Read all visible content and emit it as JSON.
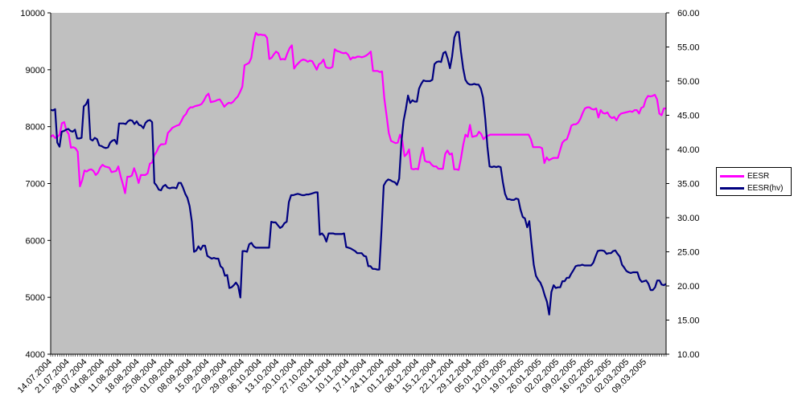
{
  "chart_data": {
    "type": "line",
    "title": "",
    "xlabel": "",
    "ylabel_left": "",
    "ylabel_right": "",
    "left_axis": {
      "ylim": [
        4000,
        10000
      ],
      "ticks": [
        "4000",
        "5000",
        "6000",
        "7000",
        "8000",
        "9000",
        "10000"
      ]
    },
    "right_axis": {
      "ylim": [
        10,
        60
      ],
      "ticks": [
        "10.00",
        "15.00",
        "20.00",
        "25.00",
        "30.00",
        "35.00",
        "40.00",
        "45.00",
        "50.00",
        "55.00",
        "60.00"
      ]
    },
    "x_tick_labels": [
      "14.07.2004",
      "21.07.2004",
      "28.07.2004",
      "04.08.2004",
      "11.08.2004",
      "18.08.2004",
      "25.08.2004",
      "01.09.2004",
      "08.09.2004",
      "15.09.2004",
      "22.09.2004",
      "29.09.2004",
      "06.10.2004",
      "13.10.2004",
      "20.10.2004",
      "27.10.2004",
      "03.11.2004",
      "10.11.2004",
      "17.11.2004",
      "24.11.2004",
      "01.12.2004",
      "08.12.2004",
      "15.12.2004",
      "22.12.2004",
      "29.12.2004",
      "05.01.2005",
      "12.01.2005",
      "19.01.2005",
      "26.01.2005",
      "02.02.2005",
      "09.02.2005",
      "16.02.2005",
      "23.02.2005",
      "02.03.2005",
      "09.03.2005"
    ],
    "grid": false,
    "plot_background": "#c0c0c0",
    "legend_position": "right",
    "series": [
      {
        "name": "EESR",
        "axis": "left",
        "color": "#ff00ff",
        "values": [
          7820,
          7850,
          7800,
          7820,
          7860,
          8060,
          8080,
          7930,
          7870,
          7630,
          7640,
          7620,
          7560,
          6950,
          7060,
          7230,
          7210,
          7240,
          7250,
          7220,
          7150,
          7190,
          7280,
          7330,
          7300,
          7290,
          7280,
          7200,
          7210,
          7220,
          7300,
          7130,
          6990,
          6830,
          7120,
          7120,
          7140,
          7270,
          7160,
          7010,
          7150,
          7150,
          7150,
          7180,
          7350,
          7370,
          7500,
          7560,
          7650,
          7690,
          7690,
          7700,
          7890,
          7930,
          7980,
          8000,
          8020,
          8030,
          8100,
          8180,
          8220,
          8300,
          8340,
          8340,
          8360,
          8370,
          8380,
          8400,
          8460,
          8540,
          8580,
          8430,
          8440,
          8450,
          8470,
          8480,
          8420,
          8350,
          8390,
          8420,
          8410,
          8440,
          8490,
          8530,
          8610,
          8700,
          9080,
          9100,
          9120,
          9210,
          9480,
          9650,
          9610,
          9620,
          9610,
          9610,
          9560,
          9190,
          9210,
          9270,
          9320,
          9290,
          9180,
          9190,
          9180,
          9290,
          9380,
          9430,
          9020,
          9080,
          9120,
          9160,
          9180,
          9170,
          9140,
          9160,
          9150,
          9080,
          9000,
          9100,
          9120,
          9180,
          9050,
          9030,
          9030,
          9050,
          9360,
          9330,
          9320,
          9300,
          9290,
          9300,
          9260,
          9180,
          9220,
          9210,
          9230,
          9230,
          9220,
          9230,
          9250,
          9280,
          9320,
          8980,
          8980,
          8980,
          8960,
          8970,
          8500,
          8200,
          7890,
          7750,
          7730,
          7710,
          7720,
          7860,
          7750,
          7480,
          7520,
          7600,
          7260,
          7250,
          7260,
          7250,
          7460,
          7630,
          7400,
          7380,
          7380,
          7330,
          7300,
          7300,
          7260,
          7260,
          7260,
          7520,
          7580,
          7510,
          7530,
          7250,
          7250,
          7240,
          7440,
          7680,
          7860,
          7820,
          8030,
          7820,
          7830,
          7840,
          7910,
          7870,
          7780,
          7820,
          7840,
          7860,
          7860,
          7860,
          7860,
          7860,
          7860,
          7860,
          7860,
          7860,
          7860,
          7860,
          7860,
          7860,
          7860,
          7860,
          7860,
          7860,
          7860,
          7780,
          7640,
          7640,
          7640,
          7640,
          7620,
          7360,
          7460,
          7410,
          7430,
          7450,
          7450,
          7450,
          7590,
          7720,
          7760,
          7780,
          7890,
          8020,
          8040,
          8040,
          8070,
          8140,
          8240,
          8320,
          8340,
          8340,
          8310,
          8300,
          8320,
          8160,
          8290,
          8240,
          8230,
          8250,
          8180,
          8150,
          8170,
          8110,
          8190,
          8230,
          8240,
          8250,
          8260,
          8270,
          8260,
          8290,
          8290,
          8230,
          8330,
          8350,
          8480,
          8540,
          8530,
          8540,
          8560,
          8480,
          8230,
          8200,
          8320,
          8320
        ]
      },
      {
        "name": "EESR(hv)",
        "axis": "right",
        "color": "#000080",
        "values": [
          45.8,
          45.7,
          45.9,
          41.0,
          40.4,
          42.6,
          42.7,
          42.9,
          43.0,
          42.7,
          42.6,
          42.9,
          41.6,
          41.6,
          41.7,
          46.3,
          46.6,
          47.3,
          41.5,
          41.3,
          41.7,
          41.5,
          40.6,
          40.5,
          40.3,
          40.2,
          40.3,
          41.0,
          41.3,
          41.4,
          40.8,
          43.8,
          43.8,
          43.8,
          43.7,
          44.1,
          44.3,
          44.2,
          43.7,
          44.1,
          43.6,
          43.5,
          43.1,
          43.9,
          44.2,
          44.3,
          44.0,
          35.1,
          34.7,
          34.1,
          34.0,
          34.6,
          34.8,
          34.4,
          34.3,
          34.4,
          34.4,
          34.3,
          35.1,
          35.1,
          34.4,
          33.5,
          32.9,
          31.7,
          29.4,
          25.0,
          25.2,
          25.8,
          25.3,
          25.9,
          25.9,
          24.4,
          24.2,
          24.0,
          24.1,
          24.0,
          24.0,
          22.9,
          22.6,
          21.5,
          21.6,
          19.7,
          19.8,
          20.1,
          20.5,
          20.0,
          18.3,
          25.1,
          25.1,
          25.0,
          26.1,
          26.3,
          25.8,
          25.6,
          25.6,
          25.6,
          25.6,
          25.6,
          25.6,
          25.6,
          29.4,
          29.3,
          29.3,
          28.9,
          28.5,
          28.7,
          29.2,
          29.4,
          32.3,
          33.3,
          33.3,
          33.4,
          33.5,
          33.4,
          33.3,
          33.3,
          33.4,
          33.4,
          33.5,
          33.6,
          33.7,
          33.7,
          27.5,
          27.7,
          27.3,
          26.5,
          27.7,
          27.7,
          27.7,
          27.6,
          27.6,
          27.6,
          27.6,
          27.7,
          25.7,
          25.6,
          25.5,
          25.3,
          25.1,
          24.8,
          24.8,
          24.8,
          24.4,
          24.3,
          22.9,
          22.9,
          22.5,
          22.5,
          22.4,
          22.4,
          28.3,
          34.7,
          35.3,
          35.6,
          35.5,
          35.3,
          35.2,
          34.8,
          35.7,
          41.1,
          44.2,
          45.9,
          47.9,
          46.8,
          47.2,
          47.0,
          47.0,
          48.9,
          49.6,
          50.1,
          50.0,
          50.0,
          50.0,
          50.2,
          52.5,
          52.8,
          52.9,
          52.8,
          54.1,
          54.3,
          53.3,
          51.9,
          53.6,
          56.4,
          57.2,
          57.2,
          54.3,
          51.9,
          50.2,
          49.7,
          49.5,
          49.5,
          49.6,
          49.5,
          49.5,
          48.9,
          47.6,
          44.5,
          40.4,
          37.5,
          37.4,
          37.5,
          37.4,
          37.5,
          37.4,
          35.2,
          33.5,
          32.7,
          32.7,
          32.6,
          32.6,
          32.8,
          32.7,
          31.2,
          30.1,
          29.9,
          28.6,
          29.5,
          26.2,
          23.1,
          21.5,
          20.9,
          20.5,
          19.7,
          18.6,
          17.7,
          15.8,
          19.1,
          20.1,
          19.7,
          19.8,
          19.8,
          20.7,
          20.7,
          21.2,
          21.2,
          21.8,
          22.3,
          22.9,
          23.0,
          23.0,
          23.1,
          23.0,
          23.0,
          23.0,
          23.0,
          23.4,
          24.3,
          25.1,
          25.2,
          25.2,
          25.1,
          24.7,
          24.8,
          24.8,
          25.1,
          25.2,
          24.7,
          24.3,
          23.1,
          22.7,
          22.2,
          22.0,
          21.9,
          22.0,
          22.0,
          22.0,
          21.0,
          20.6,
          20.7,
          20.8,
          20.3,
          19.4,
          19.4,
          19.8,
          20.8,
          20.8,
          20.2,
          20.1,
          20.3
        ]
      }
    ]
  }
}
